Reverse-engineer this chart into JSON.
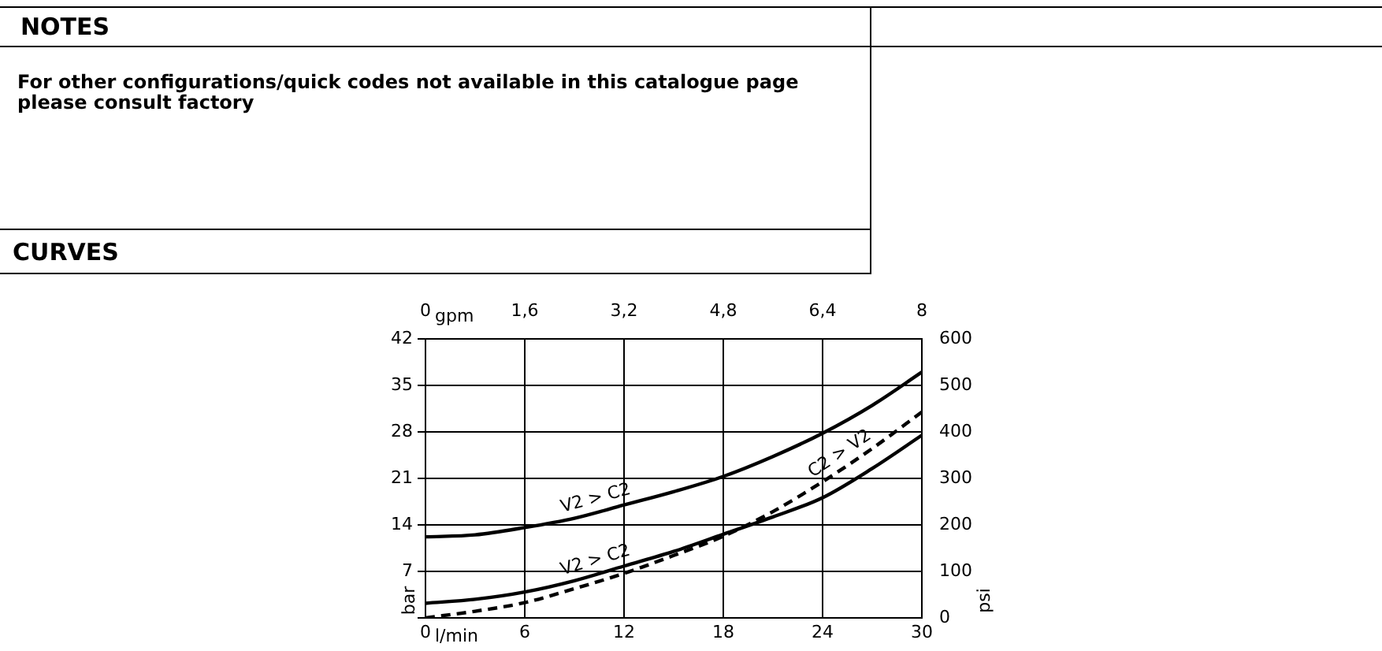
{
  "chart_data": {
    "type": "line",
    "title": "CURVES",
    "annotations": [
      "NOTES",
      "For other configurations/quick codes not available in this catalogue page please consult factory"
    ],
    "xlabel": "l/min",
    "x2label": "gpm",
    "ylabel": "bar",
    "y2label": "psi",
    "xlim": [
      0,
      30
    ],
    "xticks": [
      0,
      6,
      12,
      18,
      24,
      30
    ],
    "x2lim": [
      0,
      8
    ],
    "x2ticks": [
      0,
      {
        "value": 1.6,
        "label": "1,6"
      },
      {
        "value": 3.2,
        "label": "3,2"
      },
      {
        "value": 4.8,
        "label": "4,8"
      },
      {
        "value": 6.4,
        "label": "6,4"
      },
      8
    ],
    "ylim": [
      0,
      42
    ],
    "yticks": [
      {
        "value": 0,
        "label": null
      },
      7,
      14,
      21,
      28,
      35,
      42
    ],
    "y2lim": [
      0,
      600
    ],
    "y2ticks": [
      0,
      100,
      200,
      300,
      400,
      500,
      600
    ],
    "grid": true,
    "legend": false,
    "marker": "none",
    "x": [
      0,
      3,
      6,
      9,
      12,
      15,
      18,
      21,
      24,
      27,
      30
    ],
    "series": [
      {
        "name": "V2 > C2",
        "color": "#000000",
        "line_style": "solid",
        "values": [
          12.2,
          12.5,
          13.6,
          15,
          17,
          19,
          21.3,
          24.3,
          27.8,
          32,
          37
        ]
      },
      {
        "name": "V2 > C2",
        "color": "#000000",
        "line_style": "solid",
        "values": [
          2.2,
          2.8,
          3.9,
          5.6,
          7.8,
          10,
          12.6,
          15.2,
          18.1,
          22.5,
          27.5
        ]
      },
      {
        "name": "C2 > V2",
        "color": "#000000",
        "line_style": "dashed",
        "values": [
          0,
          1,
          2.3,
          4.4,
          6.7,
          9.4,
          12.3,
          16,
          20.5,
          25.5,
          31
        ]
      }
    ]
  }
}
